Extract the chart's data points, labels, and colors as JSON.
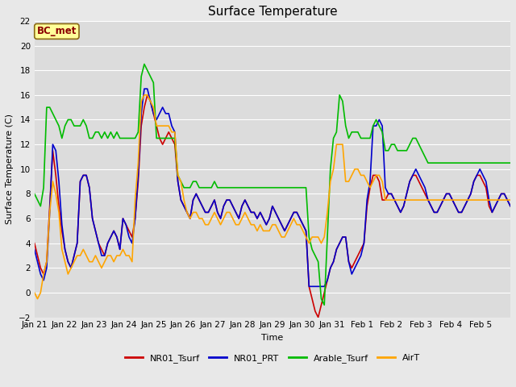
{
  "title": "Surface Temperature",
  "xlabel": "Time",
  "ylabel": "Surface Temperature (C)",
  "ylim": [
    -2,
    22
  ],
  "yticks": [
    -2,
    0,
    2,
    4,
    6,
    8,
    10,
    12,
    14,
    16,
    18,
    20,
    22
  ],
  "annotation": "BC_met",
  "annotation_color": "#8B0000",
  "annotation_bg": "#FFFF99",
  "fig_bg_color": "#E8E8E8",
  "plot_bg_color": "#DCDCDC",
  "legend_entries": [
    "NR01_Tsurf",
    "NR01_PRT",
    "Arable_Tsurf",
    "AirT"
  ],
  "line_colors": [
    "#CC0000",
    "#0000CC",
    "#00BB00",
    "#FFA500"
  ],
  "line_width": 1.2,
  "xtick_labels": [
    "Jan 21",
    "Jan 22",
    "Jan 23",
    "Jan 24",
    "Jan 25",
    "Jan 26",
    "Jan 27",
    "Jan 28",
    "Jan 29",
    "Jan 30",
    "Jan 31",
    "Feb 1",
    "Feb 2",
    "Feb 3",
    "Feb 4",
    "Feb 5"
  ],
  "title_fontsize": 11,
  "axis_label_fontsize": 8,
  "tick_fontsize": 7.5,
  "legend_fontsize": 8,
  "NR01_Tsurf": [
    4.0,
    3.0,
    2.0,
    1.5,
    2.5,
    7.0,
    11.5,
    9.5,
    7.0,
    5.0,
    3.5,
    2.5,
    2.0,
    3.0,
    4.0,
    9.0,
    9.5,
    9.5,
    8.5,
    6.0,
    5.0,
    4.0,
    3.5,
    3.0,
    4.0,
    4.5,
    5.0,
    4.5,
    3.5,
    6.0,
    5.5,
    5.0,
    4.5,
    6.0,
    9.0,
    13.5,
    15.0,
    16.0,
    15.5,
    14.5,
    13.5,
    12.5,
    12.0,
    12.5,
    13.0,
    12.5,
    12.0,
    9.0,
    7.5,
    7.0,
    6.5,
    6.0,
    7.5,
    8.0,
    7.5,
    7.0,
    6.5,
    6.5,
    7.0,
    7.5,
    6.5,
    6.0,
    7.0,
    7.5,
    7.5,
    7.0,
    6.5,
    6.0,
    7.0,
    7.5,
    7.0,
    6.5,
    6.5,
    6.0,
    6.5,
    6.0,
    5.5,
    6.0,
    7.0,
    6.5,
    6.0,
    5.5,
    5.0,
    5.5,
    6.0,
    6.5,
    6.5,
    6.0,
    5.5,
    5.0,
    0.5,
    -0.5,
    -1.5,
    -2.0,
    -1.0,
    0.0,
    1.0,
    2.0,
    2.5,
    3.5,
    4.0,
    4.5,
    4.5,
    2.5,
    2.0,
    2.5,
    3.0,
    3.5,
    4.0,
    7.0,
    8.5,
    9.5,
    9.5,
    9.0,
    7.5,
    7.5,
    8.0,
    8.0,
    7.5,
    7.0,
    6.5,
    7.0,
    8.0,
    9.0,
    9.5,
    9.5,
    9.0,
    8.5,
    8.0,
    7.5,
    7.0,
    6.5,
    6.5,
    7.0,
    7.5,
    8.0,
    8.0,
    7.5,
    7.0,
    6.5,
    6.5,
    7.0,
    7.5,
    8.0,
    9.0,
    9.5,
    9.5,
    9.0,
    8.5,
    7.0,
    6.5,
    7.0,
    7.5,
    8.0,
    8.0,
    7.5,
    7.0
  ],
  "NR01_PRT": [
    3.5,
    2.5,
    1.5,
    1.0,
    2.0,
    6.5,
    12.0,
    11.5,
    9.0,
    5.5,
    3.5,
    2.5,
    2.0,
    3.0,
    4.0,
    9.0,
    9.5,
    9.5,
    8.5,
    6.0,
    5.0,
    4.0,
    3.0,
    3.0,
    4.0,
    4.5,
    5.0,
    4.5,
    3.5,
    6.0,
    5.5,
    4.5,
    4.0,
    6.0,
    9.5,
    14.5,
    16.5,
    16.5,
    15.5,
    14.5,
    14.0,
    14.5,
    15.0,
    14.5,
    14.5,
    13.5,
    13.0,
    9.0,
    7.5,
    7.0,
    6.5,
    6.0,
    7.5,
    8.0,
    7.5,
    7.0,
    6.5,
    6.5,
    7.0,
    7.5,
    6.5,
    6.0,
    7.0,
    7.5,
    7.5,
    7.0,
    6.5,
    6.0,
    7.0,
    7.5,
    7.0,
    6.5,
    6.5,
    6.0,
    6.5,
    6.0,
    5.5,
    6.0,
    7.0,
    6.5,
    6.0,
    5.5,
    5.0,
    5.5,
    6.0,
    6.5,
    6.5,
    6.0,
    5.5,
    5.0,
    0.5,
    0.5,
    0.5,
    0.5,
    0.5,
    0.5,
    1.0,
    2.0,
    2.5,
    3.5,
    4.0,
    4.5,
    4.5,
    2.5,
    1.5,
    2.0,
    2.5,
    3.0,
    4.0,
    7.5,
    9.0,
    13.5,
    13.5,
    14.0,
    13.5,
    8.5,
    8.0,
    8.0,
    7.5,
    7.0,
    6.5,
    7.0,
    8.0,
    9.0,
    9.5,
    10.0,
    9.5,
    9.0,
    8.5,
    7.5,
    7.0,
    6.5,
    6.5,
    7.0,
    7.5,
    8.0,
    8.0,
    7.5,
    7.0,
    6.5,
    6.5,
    7.0,
    7.5,
    8.0,
    9.0,
    9.5,
    10.0,
    9.5,
    9.0,
    7.5,
    6.5,
    7.0,
    7.5,
    8.0,
    8.0,
    7.5,
    7.0
  ],
  "Arable_Tsurf": [
    8.0,
    7.5,
    7.0,
    8.5,
    15.0,
    15.0,
    14.5,
    14.0,
    13.5,
    12.5,
    13.5,
    14.0,
    14.0,
    13.5,
    13.5,
    13.5,
    14.0,
    13.5,
    12.5,
    12.5,
    13.0,
    13.0,
    12.5,
    13.0,
    12.5,
    13.0,
    12.5,
    13.0,
    12.5,
    12.5,
    12.5,
    12.5,
    12.5,
    12.5,
    13.0,
    17.5,
    18.5,
    18.0,
    17.5,
    17.0,
    12.5,
    12.5,
    12.5,
    12.5,
    12.5,
    12.5,
    12.5,
    9.5,
    9.0,
    8.5,
    8.5,
    8.5,
    9.0,
    9.0,
    8.5,
    8.5,
    8.5,
    8.5,
    8.5,
    9.0,
    8.5,
    8.5,
    8.5,
    8.5,
    8.5,
    8.5,
    8.5,
    8.5,
    8.5,
    8.5,
    8.5,
    8.5,
    8.5,
    8.5,
    8.5,
    8.5,
    8.5,
    8.5,
    8.5,
    8.5,
    8.5,
    8.5,
    8.5,
    8.5,
    8.5,
    8.5,
    8.5,
    8.5,
    8.5,
    8.5,
    4.5,
    3.5,
    3.0,
    2.5,
    -0.5,
    -1.0,
    4.5,
    10.0,
    12.5,
    13.0,
    16.0,
    15.5,
    13.5,
    12.5,
    13.0,
    13.0,
    13.0,
    12.5,
    12.5,
    12.5,
    12.5,
    13.5,
    14.0,
    13.5,
    13.0,
    11.5,
    11.5,
    12.0,
    12.0,
    11.5,
    11.5,
    11.5,
    11.5,
    12.0,
    12.5,
    12.5,
    12.0,
    11.5,
    11.0,
    10.5,
    10.5,
    10.5,
    10.5,
    10.5,
    10.5,
    10.5,
    10.5,
    10.5,
    10.5,
    10.5,
    10.5,
    10.5,
    10.5,
    10.5,
    10.5,
    10.5,
    10.5,
    10.5,
    10.5,
    10.5,
    10.5,
    10.5,
    10.5,
    10.5,
    10.5,
    10.5,
    10.5
  ],
  "AirT": [
    0.0,
    -0.5,
    0.0,
    1.5,
    2.5,
    6.5,
    9.0,
    8.0,
    6.5,
    3.5,
    2.5,
    1.5,
    2.0,
    2.5,
    3.0,
    3.0,
    3.5,
    3.0,
    2.5,
    2.5,
    3.0,
    2.5,
    2.0,
    2.5,
    3.0,
    3.0,
    2.5,
    3.0,
    3.0,
    3.5,
    3.0,
    3.0,
    2.5,
    7.5,
    10.5,
    15.5,
    16.0,
    16.0,
    15.5,
    15.0,
    13.5,
    13.5,
    13.5,
    13.5,
    13.5,
    13.0,
    13.0,
    9.5,
    9.0,
    7.5,
    6.5,
    6.0,
    6.5,
    6.5,
    6.0,
    6.0,
    5.5,
    5.5,
    6.0,
    6.5,
    6.0,
    5.5,
    6.0,
    6.5,
    6.5,
    6.0,
    5.5,
    5.5,
    6.0,
    6.5,
    6.0,
    5.5,
    5.5,
    5.0,
    5.5,
    5.0,
    5.0,
    5.0,
    5.5,
    5.5,
    5.0,
    4.5,
    4.5,
    5.0,
    5.5,
    6.0,
    5.5,
    5.5,
    5.0,
    4.5,
    4.0,
    4.5,
    4.5,
    4.5,
    4.0,
    4.5,
    6.5,
    9.0,
    10.0,
    12.0,
    12.0,
    12.0,
    9.0,
    9.0,
    9.5,
    10.0,
    10.0,
    9.5,
    9.5,
    9.0,
    8.5,
    9.0,
    9.5,
    9.5,
    9.0,
    7.5,
    7.5,
    7.5,
    7.5,
    7.5,
    7.5,
    7.5,
    7.5,
    7.5,
    7.5,
    7.5,
    7.5,
    7.5,
    7.5,
    7.5,
    7.5,
    7.5,
    7.5,
    7.5,
    7.5,
    7.5,
    7.5,
    7.5,
    7.5,
    7.5,
    7.5,
    7.5,
    7.5,
    7.5,
    7.5,
    7.5,
    7.5,
    7.5,
    7.5,
    7.5,
    7.5,
    7.5,
    7.5,
    7.5,
    7.5,
    7.5,
    7.5
  ]
}
